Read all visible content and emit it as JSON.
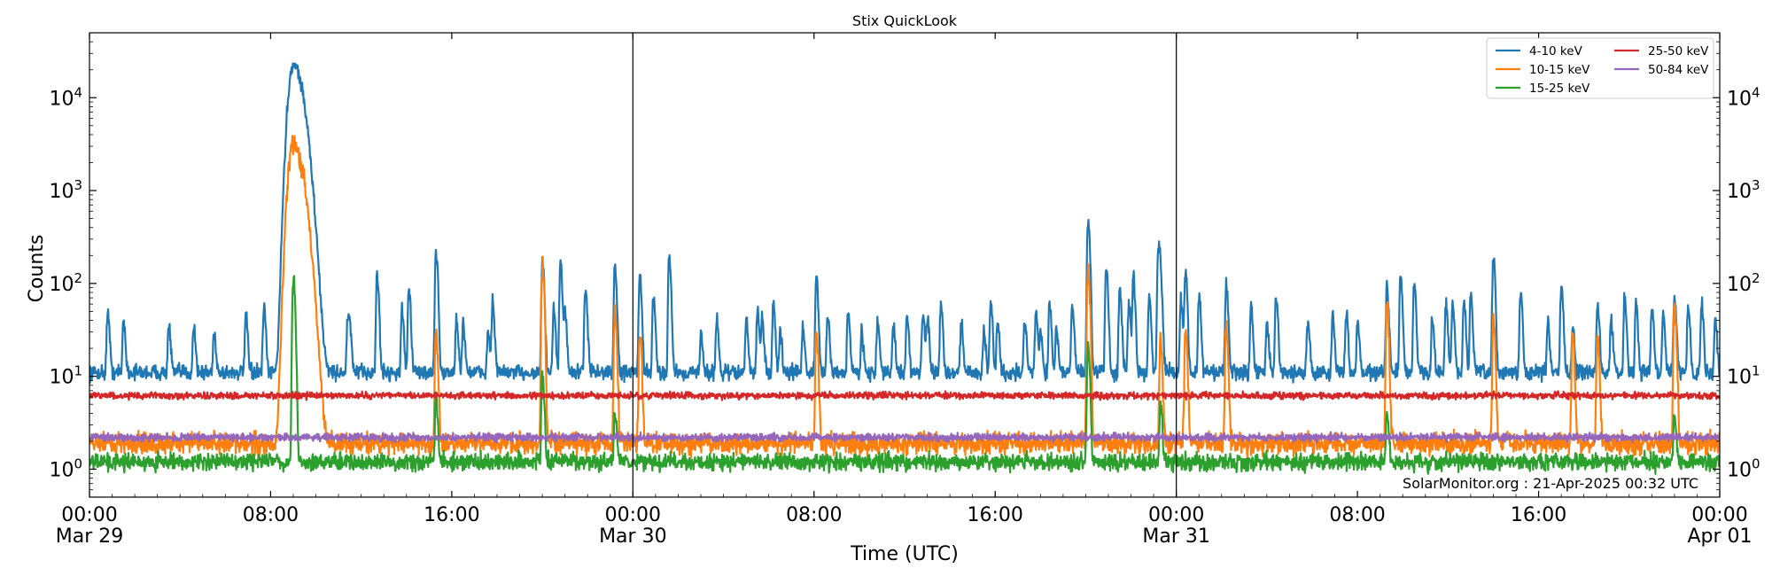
{
  "chart_data": {
    "type": "line",
    "title": "Stix QuickLook",
    "xlabel": "Time (UTC)",
    "ylabel": "Counts",
    "yscale": "log",
    "ylim": [
      0.5,
      50000
    ],
    "xlim_hours": [
      0,
      72
    ],
    "x_unit": "hours since 2025-03-29 00:00 UTC",
    "x_ticks": [
      {
        "hour": 0,
        "time": "00:00",
        "date": "Mar 29"
      },
      {
        "hour": 8,
        "time": "08:00",
        "date": ""
      },
      {
        "hour": 16,
        "time": "16:00",
        "date": ""
      },
      {
        "hour": 24,
        "time": "00:00",
        "date": "Mar 30"
      },
      {
        "hour": 32,
        "time": "08:00",
        "date": ""
      },
      {
        "hour": 40,
        "time": "16:00",
        "date": ""
      },
      {
        "hour": 48,
        "time": "00:00",
        "date": "Mar 31"
      },
      {
        "hour": 56,
        "time": "08:00",
        "date": ""
      },
      {
        "hour": 64,
        "time": "16:00",
        "date": ""
      },
      {
        "hour": 72,
        "time": "00:00",
        "date": "Apr 01"
      }
    ],
    "y_ticks": [
      {
        "value": 1,
        "base": "10",
        "exp": "0"
      },
      {
        "value": 10,
        "base": "10",
        "exp": "1"
      },
      {
        "value": 100,
        "base": "10",
        "exp": "2"
      },
      {
        "value": 1000,
        "base": "10",
        "exp": "3"
      },
      {
        "value": 10000,
        "base": "10",
        "exp": "4"
      }
    ],
    "day_boundaries_hours": [
      24,
      48
    ],
    "legend_position": "top-right",
    "series": [
      {
        "name": "4-10 keV",
        "color": "#1f77b4",
        "baseline": 11,
        "peaks": [
          [
            0.8,
            50
          ],
          [
            1.5,
            40
          ],
          [
            3.5,
            35
          ],
          [
            4.6,
            35
          ],
          [
            5.5,
            30
          ],
          [
            6.9,
            45
          ],
          [
            7.7,
            55
          ],
          [
            9.2,
            110
          ],
          [
            9.8,
            55
          ],
          [
            11.4,
            40
          ],
          [
            12.7,
            120
          ],
          [
            14.1,
            90
          ],
          [
            15.3,
            220
          ],
          [
            16.5,
            38
          ],
          [
            17.8,
            65
          ],
          [
            20.0,
            170
          ],
          [
            20.8,
            160
          ],
          [
            21.9,
            95
          ],
          [
            23.2,
            150
          ],
          [
            24.3,
            115
          ],
          [
            24.9,
            70
          ],
          [
            25.6,
            95
          ],
          [
            27.0,
            30
          ],
          [
            27.7,
            40
          ],
          [
            29.0,
            40
          ],
          [
            29.7,
            45
          ],
          [
            30.5,
            30
          ],
          [
            31.5,
            35
          ],
          [
            32.1,
            110
          ],
          [
            32.6,
            45
          ],
          [
            34.1,
            30
          ],
          [
            34.8,
            40
          ],
          [
            35.5,
            35
          ],
          [
            36.1,
            45
          ],
          [
            36.8,
            50
          ],
          [
            37.6,
            60
          ],
          [
            38.5,
            40
          ],
          [
            39.5,
            30
          ],
          [
            40.1,
            40
          ],
          [
            41.3,
            40
          ],
          [
            42.0,
            30
          ],
          [
            42.7,
            35
          ],
          [
            43.4,
            60
          ],
          [
            44.1,
            500
          ],
          [
            44.9,
            150
          ],
          [
            45.5,
            90
          ],
          [
            46.1,
            120
          ],
          [
            47.3,
            100
          ],
          [
            48.4,
            130
          ],
          [
            49.0,
            75
          ],
          [
            50.2,
            100
          ],
          [
            51.3,
            55
          ],
          [
            52.0,
            40
          ],
          [
            53.8,
            40
          ],
          [
            54.9,
            45
          ],
          [
            56.0,
            40
          ],
          [
            57.3,
            90
          ],
          [
            58.5,
            100
          ],
          [
            59.3,
            40
          ],
          [
            59.9,
            60
          ],
          [
            60.7,
            60
          ],
          [
            62.0,
            170
          ],
          [
            63.2,
            80
          ],
          [
            64.4,
            40
          ],
          [
            65.5,
            35
          ],
          [
            66.6,
            60
          ],
          [
            67.8,
            70
          ],
          [
            68.3,
            60
          ],
          [
            69.5,
            50
          ],
          [
            70.0,
            70
          ],
          [
            71.2,
            60
          ],
          [
            71.8,
            40
          ]
        ],
        "flares": [
          [
            9.0,
            23000
          ],
          [
            11.5,
            30
          ],
          [
            13.8,
            50
          ],
          [
            16.2,
            40
          ],
          [
            17.6,
            30
          ],
          [
            20.5,
            50
          ],
          [
            21.0,
            50
          ],
          [
            25.6,
            110
          ],
          [
            29.5,
            50
          ],
          [
            30.2,
            60
          ],
          [
            33.5,
            50
          ],
          [
            37.0,
            40
          ],
          [
            39.8,
            60
          ],
          [
            41.8,
            50
          ],
          [
            42.4,
            60
          ],
          [
            45.9,
            60
          ],
          [
            46.8,
            80
          ],
          [
            47.2,
            250
          ],
          [
            48.2,
            70
          ],
          [
            52.4,
            70
          ],
          [
            55.5,
            50
          ],
          [
            57.9,
            120
          ],
          [
            60.2,
            60
          ],
          [
            61.0,
            80
          ],
          [
            65.0,
            100
          ],
          [
            67.2,
            40
          ],
          [
            69.0,
            60
          ],
          [
            70.6,
            60
          ]
        ]
      },
      {
        "name": "10-15 keV",
        "color": "#ff7f0e",
        "baseline": 1.9,
        "flares": [
          [
            9.0,
            3200
          ],
          [
            15.3,
            30
          ],
          [
            20.0,
            150
          ],
          [
            23.2,
            50
          ],
          [
            24.3,
            30
          ],
          [
            32.1,
            30
          ],
          [
            44.1,
            140
          ],
          [
            47.3,
            25
          ],
          [
            48.4,
            30
          ],
          [
            50.2,
            35
          ],
          [
            57.3,
            60
          ],
          [
            62.0,
            40
          ],
          [
            65.5,
            30
          ],
          [
            66.6,
            30
          ],
          [
            70.0,
            60
          ]
        ]
      },
      {
        "name": "15-25 keV",
        "color": "#2ca02c",
        "baseline": 1.2,
        "flares": [
          [
            9.0,
            120
          ],
          [
            15.3,
            6
          ],
          [
            20.0,
            10
          ],
          [
            23.2,
            4
          ],
          [
            44.1,
            20
          ],
          [
            47.3,
            5
          ],
          [
            57.3,
            4
          ],
          [
            70.0,
            4
          ]
        ]
      },
      {
        "name": "25-50 keV",
        "color": "#d62728",
        "baseline": 6.2,
        "flares": []
      },
      {
        "name": "50-84 keV",
        "color": "#9467bd",
        "baseline": 2.2,
        "flares": []
      }
    ]
  },
  "watermark": "SolarMonitor.org : 21-Apr-2025 00:32 UTC"
}
